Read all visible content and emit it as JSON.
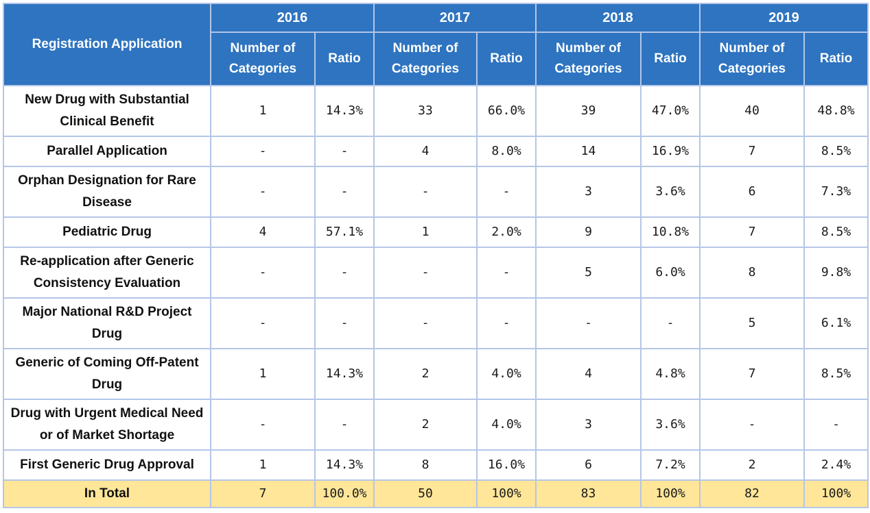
{
  "table": {
    "header": {
      "row_header": "Registration Application",
      "years": [
        "2016",
        "2017",
        "2018",
        "2019"
      ],
      "count_label": "Number of Categories",
      "ratio_label": "Ratio"
    },
    "rows": [
      {
        "name": "New Drug with Substantial Clinical Benefit",
        "values": [
          "1",
          "14.3%",
          "33",
          "66.0%",
          "39",
          "47.0%",
          "40",
          "48.8%"
        ]
      },
      {
        "name": "Parallel Application",
        "values": [
          "-",
          "-",
          "4",
          "8.0%",
          "14",
          "16.9%",
          "7",
          "8.5%"
        ]
      },
      {
        "name": "Orphan Designation for Rare Disease",
        "values": [
          "-",
          "-",
          "-",
          "-",
          "3",
          "3.6%",
          "6",
          "7.3%"
        ]
      },
      {
        "name": "Pediatric Drug",
        "values": [
          "4",
          "57.1%",
          "1",
          "2.0%",
          "9",
          "10.8%",
          "7",
          "8.5%"
        ]
      },
      {
        "name": "Re-application after Generic Consistency Evaluation",
        "values": [
          "-",
          "-",
          "-",
          "-",
          "5",
          "6.0%",
          "8",
          "9.8%"
        ]
      },
      {
        "name": "Major National R&D Project Drug",
        "values": [
          "-",
          "-",
          "-",
          "-",
          "-",
          "-",
          "5",
          "6.1%"
        ]
      },
      {
        "name": "Generic of Coming Off-Patent Drug",
        "values": [
          "1",
          "14.3%",
          "2",
          "4.0%",
          "4",
          "4.8%",
          "7",
          "8.5%"
        ]
      },
      {
        "name": "Drug with Urgent Medical Need or of Market Shortage",
        "values": [
          "-",
          "-",
          "2",
          "4.0%",
          "3",
          "3.6%",
          "-",
          "-"
        ]
      },
      {
        "name": "First Generic Drug Approval",
        "values": [
          "1",
          "14.3%",
          "8",
          "16.0%",
          "6",
          "7.2%",
          "2",
          "2.4%"
        ]
      }
    ],
    "total": {
      "name": "In Total",
      "values": [
        "7",
        "100.0%",
        "50",
        "100%",
        "83",
        "100%",
        "82",
        "100%"
      ]
    },
    "colors": {
      "header_bg": "#2e74c0",
      "header_text": "#ffffff",
      "border": "#b4c6e7",
      "total_bg": "#ffe699"
    }
  }
}
